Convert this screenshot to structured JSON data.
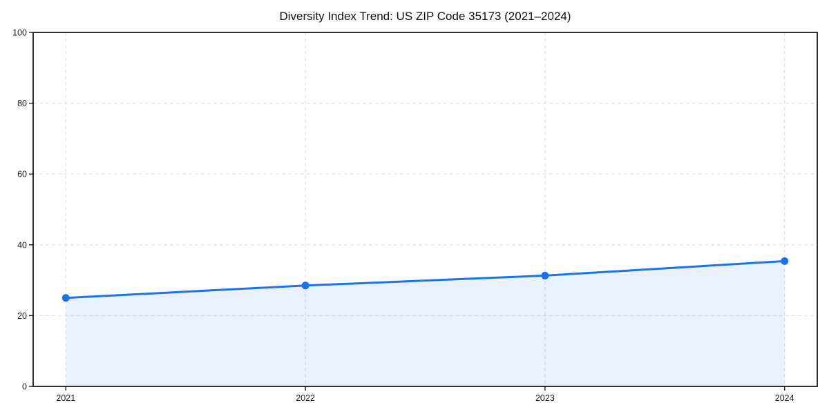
{
  "page": {
    "kind": "static-chart-figure",
    "background_color": "#ffffff"
  },
  "chart_data": {
    "type": "area",
    "title": "Diversity Index Trend: US ZIP Code 35173 (2021–2024)",
    "xlabel": "",
    "ylabel": "",
    "categories": [
      "2021",
      "2022",
      "2023",
      "2024"
    ],
    "series": [
      {
        "name": "Diversity Index",
        "values": [
          25.0,
          28.5,
          31.3,
          35.4
        ]
      }
    ],
    "ylim": [
      0,
      100
    ],
    "yticks": [
      0,
      20,
      40,
      60,
      80,
      100
    ],
    "grid": true,
    "grid_style": "dashed",
    "legend_position": "none",
    "line_color": "#1a73e8",
    "marker_color": "#1a73e8",
    "fill_color": "#1a73e8",
    "fill_opacity": 0.1,
    "grid_color": "#e0e0e0",
    "frame_color": "#1a1a1a",
    "text_color": "#1a1a1a"
  }
}
